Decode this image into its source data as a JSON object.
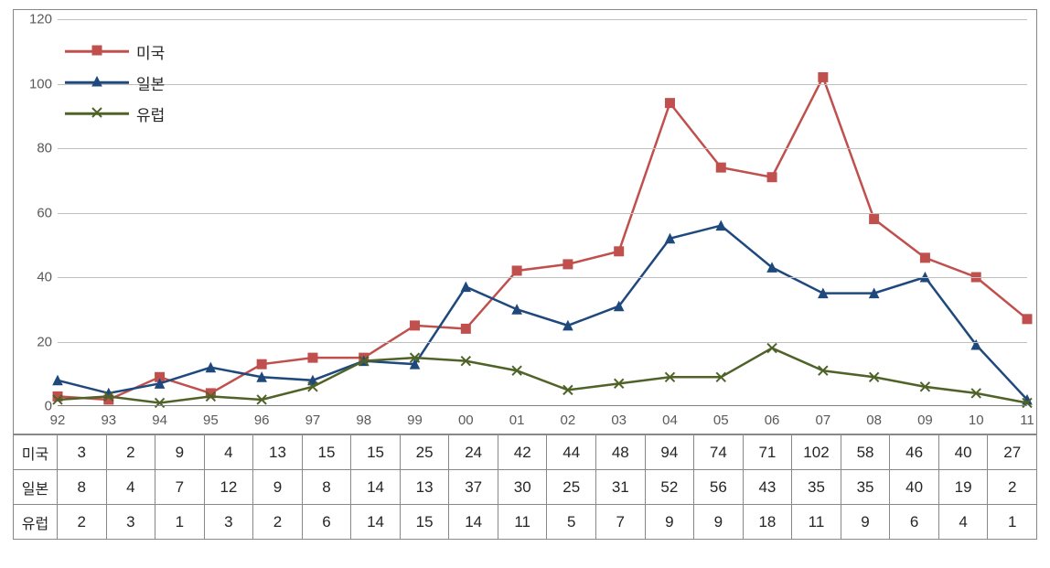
{
  "chart": {
    "type": "line",
    "background_color": "#ffffff",
    "grid_color": "#bfbfbf",
    "axis_color": "#808080",
    "text_color": "#595959",
    "ylim": [
      0,
      120
    ],
    "ytick_step": 20,
    "yticks": [
      0,
      20,
      40,
      60,
      80,
      100,
      120
    ],
    "categories": [
      "92",
      "93",
      "94",
      "95",
      "96",
      "97",
      "98",
      "99",
      "00",
      "01",
      "02",
      "03",
      "04",
      "05",
      "06",
      "07",
      "08",
      "09",
      "10",
      "11"
    ],
    "line_width": 2.5,
    "marker_size": 10,
    "label_fontsize": 15,
    "series": [
      {
        "key": "usa",
        "label": "미국",
        "color": "#c0504d",
        "marker": "square",
        "values": [
          3,
          2,
          9,
          4,
          13,
          15,
          15,
          25,
          24,
          42,
          44,
          48,
          94,
          74,
          71,
          102,
          58,
          46,
          40,
          27
        ]
      },
      {
        "key": "japan",
        "label": "일본",
        "color": "#1f497d",
        "marker": "triangle",
        "values": [
          8,
          4,
          7,
          12,
          9,
          8,
          14,
          13,
          37,
          30,
          25,
          31,
          52,
          56,
          43,
          35,
          35,
          40,
          19,
          2
        ]
      },
      {
        "key": "europe",
        "label": "유럽",
        "color": "#4f6228",
        "marker": "cross",
        "values": [
          2,
          3,
          1,
          3,
          2,
          6,
          14,
          15,
          14,
          11,
          5,
          7,
          9,
          9,
          18,
          11,
          9,
          6,
          4,
          1
        ]
      }
    ],
    "legend": {
      "position": "top-left"
    }
  },
  "table": {
    "rows": [
      {
        "label": "미국",
        "series_key": "usa"
      },
      {
        "label": "일본",
        "series_key": "japan"
      },
      {
        "label": "유럽",
        "series_key": "europe"
      }
    ]
  }
}
